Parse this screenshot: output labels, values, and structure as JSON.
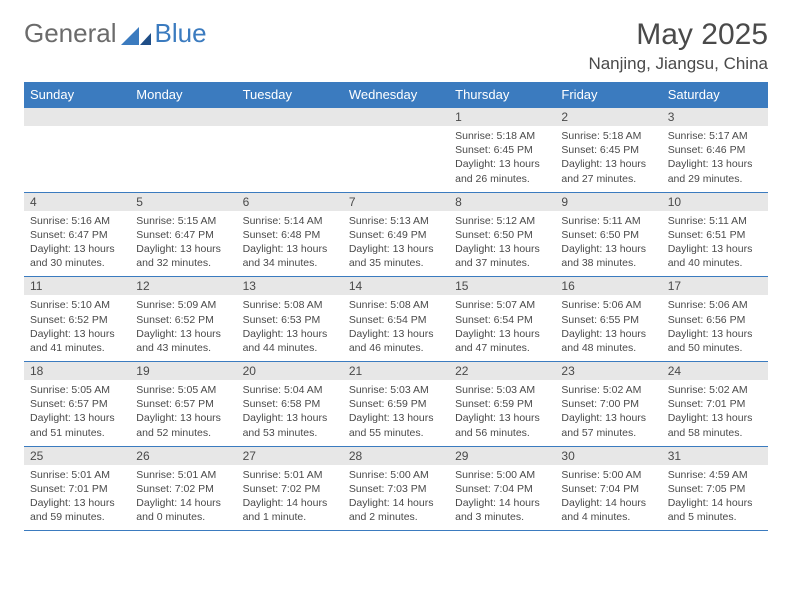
{
  "logo": {
    "general": "General",
    "blue": "Blue"
  },
  "header": {
    "title": "May 2025",
    "location": "Nanjing, Jiangsu, China"
  },
  "colors": {
    "header_bg": "#3b7bbf",
    "header_text": "#ffffff",
    "daynum_bg": "#e7e7e7",
    "border": "#3b7bbf",
    "text": "#4a4a4a",
    "logo_gray": "#6b6b6b"
  },
  "weekdays": [
    "Sunday",
    "Monday",
    "Tuesday",
    "Wednesday",
    "Thursday",
    "Friday",
    "Saturday"
  ],
  "weeks": [
    [
      {
        "blank": true
      },
      {
        "blank": true
      },
      {
        "blank": true
      },
      {
        "blank": true
      },
      {
        "n": "1",
        "sunrise": "5:18 AM",
        "sunset": "6:45 PM",
        "daylight": "13 hours and 26 minutes."
      },
      {
        "n": "2",
        "sunrise": "5:18 AM",
        "sunset": "6:45 PM",
        "daylight": "13 hours and 27 minutes."
      },
      {
        "n": "3",
        "sunrise": "5:17 AM",
        "sunset": "6:46 PM",
        "daylight": "13 hours and 29 minutes."
      }
    ],
    [
      {
        "n": "4",
        "sunrise": "5:16 AM",
        "sunset": "6:47 PM",
        "daylight": "13 hours and 30 minutes."
      },
      {
        "n": "5",
        "sunrise": "5:15 AM",
        "sunset": "6:47 PM",
        "daylight": "13 hours and 32 minutes."
      },
      {
        "n": "6",
        "sunrise": "5:14 AM",
        "sunset": "6:48 PM",
        "daylight": "13 hours and 34 minutes."
      },
      {
        "n": "7",
        "sunrise": "5:13 AM",
        "sunset": "6:49 PM",
        "daylight": "13 hours and 35 minutes."
      },
      {
        "n": "8",
        "sunrise": "5:12 AM",
        "sunset": "6:50 PM",
        "daylight": "13 hours and 37 minutes."
      },
      {
        "n": "9",
        "sunrise": "5:11 AM",
        "sunset": "6:50 PM",
        "daylight": "13 hours and 38 minutes."
      },
      {
        "n": "10",
        "sunrise": "5:11 AM",
        "sunset": "6:51 PM",
        "daylight": "13 hours and 40 minutes."
      }
    ],
    [
      {
        "n": "11",
        "sunrise": "5:10 AM",
        "sunset": "6:52 PM",
        "daylight": "13 hours and 41 minutes."
      },
      {
        "n": "12",
        "sunrise": "5:09 AM",
        "sunset": "6:52 PM",
        "daylight": "13 hours and 43 minutes."
      },
      {
        "n": "13",
        "sunrise": "5:08 AM",
        "sunset": "6:53 PM",
        "daylight": "13 hours and 44 minutes."
      },
      {
        "n": "14",
        "sunrise": "5:08 AM",
        "sunset": "6:54 PM",
        "daylight": "13 hours and 46 minutes."
      },
      {
        "n": "15",
        "sunrise": "5:07 AM",
        "sunset": "6:54 PM",
        "daylight": "13 hours and 47 minutes."
      },
      {
        "n": "16",
        "sunrise": "5:06 AM",
        "sunset": "6:55 PM",
        "daylight": "13 hours and 48 minutes."
      },
      {
        "n": "17",
        "sunrise": "5:06 AM",
        "sunset": "6:56 PM",
        "daylight": "13 hours and 50 minutes."
      }
    ],
    [
      {
        "n": "18",
        "sunrise": "5:05 AM",
        "sunset": "6:57 PM",
        "daylight": "13 hours and 51 minutes."
      },
      {
        "n": "19",
        "sunrise": "5:05 AM",
        "sunset": "6:57 PM",
        "daylight": "13 hours and 52 minutes."
      },
      {
        "n": "20",
        "sunrise": "5:04 AM",
        "sunset": "6:58 PM",
        "daylight": "13 hours and 53 minutes."
      },
      {
        "n": "21",
        "sunrise": "5:03 AM",
        "sunset": "6:59 PM",
        "daylight": "13 hours and 55 minutes."
      },
      {
        "n": "22",
        "sunrise": "5:03 AM",
        "sunset": "6:59 PM",
        "daylight": "13 hours and 56 minutes."
      },
      {
        "n": "23",
        "sunrise": "5:02 AM",
        "sunset": "7:00 PM",
        "daylight": "13 hours and 57 minutes."
      },
      {
        "n": "24",
        "sunrise": "5:02 AM",
        "sunset": "7:01 PM",
        "daylight": "13 hours and 58 minutes."
      }
    ],
    [
      {
        "n": "25",
        "sunrise": "5:01 AM",
        "sunset": "7:01 PM",
        "daylight": "13 hours and 59 minutes."
      },
      {
        "n": "26",
        "sunrise": "5:01 AM",
        "sunset": "7:02 PM",
        "daylight": "14 hours and 0 minutes."
      },
      {
        "n": "27",
        "sunrise": "5:01 AM",
        "sunset": "7:02 PM",
        "daylight": "14 hours and 1 minute."
      },
      {
        "n": "28",
        "sunrise": "5:00 AM",
        "sunset": "7:03 PM",
        "daylight": "14 hours and 2 minutes."
      },
      {
        "n": "29",
        "sunrise": "5:00 AM",
        "sunset": "7:04 PM",
        "daylight": "14 hours and 3 minutes."
      },
      {
        "n": "30",
        "sunrise": "5:00 AM",
        "sunset": "7:04 PM",
        "daylight": "14 hours and 4 minutes."
      },
      {
        "n": "31",
        "sunrise": "4:59 AM",
        "sunset": "7:05 PM",
        "daylight": "14 hours and 5 minutes."
      }
    ]
  ],
  "labels": {
    "sunrise": "Sunrise: ",
    "sunset": "Sunset: ",
    "daylight": "Daylight: "
  }
}
